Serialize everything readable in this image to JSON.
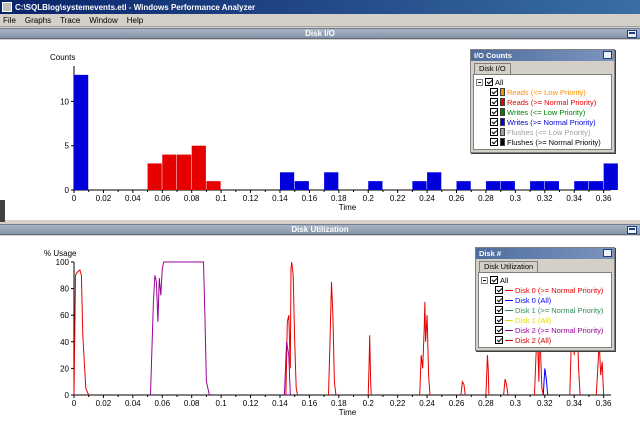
{
  "window": {
    "title": "C:\\SQLBlog\\systemevents.etl - Windows Performance Analyzer"
  },
  "menu": [
    "File",
    "Graphs",
    "Trace",
    "Window",
    "Help"
  ],
  "colors": {
    "reads_low": "#ff8c00",
    "reads_normal": "#e60000",
    "writes_low": "#008000",
    "writes_normal": "#0000dd",
    "flushes_low": "#a0a0a0",
    "flushes_normal": "#000000",
    "disk0_normal": "#e60000",
    "disk0_all": "#0000ff",
    "disk1_normal": "#2e8b57",
    "disk1_all": "#e0e000",
    "disk2_normal": "#990099",
    "disk2_all": "#cc0000"
  },
  "disk_io": {
    "header": "Disk I/O",
    "legend": {
      "title": "I/O Counts",
      "tab": "Disk I/O",
      "all_label": "All",
      "items": [
        {
          "label": "Reads (<= Low Priority)",
          "color": "#ff8c00"
        },
        {
          "label": "Reads (>= Normal Priority)",
          "color": "#e60000"
        },
        {
          "label": "Writes (<= Low Priority)",
          "color": "#008000"
        },
        {
          "label": "Writes (>= Normal Priority)",
          "color": "#0000dd"
        },
        {
          "label": "Flushes (<= Low Priority)",
          "color": "#a0a0a0"
        },
        {
          "label": "Flushes (>= Normal Priority)",
          "color": "#000000"
        }
      ]
    }
  },
  "disk_util": {
    "header": "Disk Utilization",
    "legend": {
      "title": "Disk #",
      "tab": "Disk Utilization",
      "all_label": "All",
      "items": [
        {
          "label": "Disk 0 (>= Normal Priority)",
          "color": "#e60000"
        },
        {
          "label": "Disk 0 (All)",
          "color": "#0000ff"
        },
        {
          "label": "Disk 1 (>= Normal Priority)",
          "color": "#2e8b57"
        },
        {
          "label": "Disk 1 (All)",
          "color": "#e0e000"
        },
        {
          "label": "Disk 2 (>= Normal Priority)",
          "color": "#990099"
        },
        {
          "label": "Disk 2 (All)",
          "color": "#cc0000"
        }
      ]
    }
  },
  "chart_data": [
    {
      "type": "bar",
      "ylabel": "Counts",
      "xlabel": "Time",
      "xlim": [
        0,
        0.365
      ],
      "ylim": [
        0,
        14
      ],
      "yticks": [
        0,
        5,
        10
      ],
      "xticks": [
        "0",
        "0.02",
        "0.04",
        "0.06",
        "0.08",
        "0.1",
        "0.12",
        "0.14",
        "0.16",
        "0.18",
        "0.2",
        "0.22",
        "0.24",
        "0.26",
        "0.28",
        "0.3",
        "0.32",
        "0.34",
        "0.36"
      ],
      "bin_width": 0.01,
      "bars": [
        {
          "x": 0.0,
          "value": 13,
          "color": "#0000dd"
        },
        {
          "x": 0.05,
          "value": 3,
          "color": "#e60000"
        },
        {
          "x": 0.06,
          "value": 4,
          "color": "#e60000"
        },
        {
          "x": 0.07,
          "value": 4,
          "color": "#e60000"
        },
        {
          "x": 0.08,
          "value": 5,
          "color": "#e60000"
        },
        {
          "x": 0.09,
          "value": 1,
          "color": "#e60000"
        },
        {
          "x": 0.14,
          "value": 2,
          "color": "#0000dd"
        },
        {
          "x": 0.15,
          "value": 1,
          "color": "#0000dd"
        },
        {
          "x": 0.17,
          "value": 2,
          "color": "#0000dd"
        },
        {
          "x": 0.2,
          "value": 1,
          "color": "#0000dd"
        },
        {
          "x": 0.23,
          "value": 1,
          "color": "#0000dd"
        },
        {
          "x": 0.24,
          "value": 2,
          "color": "#0000dd"
        },
        {
          "x": 0.26,
          "value": 1,
          "color": "#0000dd"
        },
        {
          "x": 0.28,
          "value": 1,
          "color": "#0000dd"
        },
        {
          "x": 0.29,
          "value": 1,
          "color": "#0000dd"
        },
        {
          "x": 0.31,
          "value": 1,
          "color": "#0000dd"
        },
        {
          "x": 0.32,
          "value": 1,
          "color": "#0000dd"
        },
        {
          "x": 0.34,
          "value": 1,
          "color": "#0000dd"
        },
        {
          "x": 0.35,
          "value": 1,
          "color": "#0000dd"
        },
        {
          "x": 0.36,
          "value": 3,
          "color": "#0000dd"
        }
      ]
    },
    {
      "type": "line",
      "ylabel": "% Usage",
      "xlabel": "Time",
      "xlim": [
        0,
        0.365
      ],
      "ylim": [
        0,
        100
      ],
      "yticks": [
        0,
        20,
        40,
        60,
        80,
        100
      ],
      "xticks": [
        "0",
        "0.02",
        "0.04",
        "0.06",
        "0.08",
        "0.1",
        "0.12",
        "0.14",
        "0.16",
        "0.18",
        "0.2",
        "0.22",
        "0.24",
        "0.26",
        "0.28",
        "0.3",
        "0.32",
        "0.34",
        "0.36"
      ],
      "series": [
        {
          "color": "#e60000",
          "x": [
            0,
            0.001,
            0.002,
            0.004,
            0.005,
            0.006,
            0.008,
            0.01
          ],
          "y": [
            0,
            90,
            92,
            94,
            90,
            45,
            5,
            0
          ]
        },
        {
          "color": "#990099",
          "x": [
            0.052,
            0.054,
            0.055,
            0.056,
            0.057,
            0.058,
            0.059,
            0.06,
            0.061,
            0.062,
            0.088,
            0.089,
            0.09,
            0.092
          ],
          "y": [
            0,
            70,
            90,
            85,
            55,
            88,
            75,
            95,
            100,
            100,
            100,
            60,
            10,
            0
          ]
        },
        {
          "color": "#e60000",
          "x": [
            0.144,
            0.145,
            0.146,
            0.147,
            0.1475,
            0.148,
            0.149,
            0.15,
            0.151,
            0.152
          ],
          "y": [
            0,
            55,
            60,
            20,
            95,
            100,
            90,
            40,
            5,
            0
          ]
        },
        {
          "color": "#990099",
          "x": [
            0.143,
            0.1445,
            0.146,
            0.147
          ],
          "y": [
            0,
            40,
            30,
            0
          ]
        },
        {
          "color": "#e60000",
          "x": [
            0.173,
            0.174,
            0.175,
            0.176,
            0.177,
            0.178
          ],
          "y": [
            0,
            40,
            85,
            60,
            10,
            0
          ]
        },
        {
          "color": "#e60000",
          "x": [
            0.2,
            0.2005,
            0.201,
            0.2015,
            0.202
          ],
          "y": [
            0,
            20,
            45,
            15,
            0
          ]
        },
        {
          "color": "#e60000",
          "x": [
            0.235,
            0.236,
            0.237,
            0.238,
            0.2385,
            0.239,
            0.24,
            0.241,
            0.242
          ],
          "y": [
            0,
            30,
            20,
            50,
            70,
            40,
            60,
            15,
            0
          ]
        },
        {
          "color": "#e60000",
          "x": [
            0.263,
            0.264,
            0.265,
            0.266
          ],
          "y": [
            0,
            10,
            8,
            0
          ]
        },
        {
          "color": "#e60000",
          "x": [
            0.28,
            0.2805,
            0.281,
            0.2815,
            0.282
          ],
          "y": [
            0,
            15,
            30,
            20,
            0
          ]
        },
        {
          "color": "#e60000",
          "x": [
            0.292,
            0.293,
            0.294,
            0.295
          ],
          "y": [
            0,
            12,
            8,
            0
          ]
        },
        {
          "color": "#e60000",
          "x": [
            0.313,
            0.314,
            0.315,
            0.316,
            0.3165,
            0.317,
            0.318,
            0.319
          ],
          "y": [
            0,
            30,
            45,
            10,
            55,
            35,
            5,
            0
          ]
        },
        {
          "color": "#0000ff",
          "x": [
            0.319,
            0.32,
            0.321,
            0.322
          ],
          "y": [
            0,
            20,
            12,
            0
          ]
        },
        {
          "color": "#e60000",
          "x": [
            0.337,
            0.338,
            0.339,
            0.34,
            0.341,
            0.342,
            0.343,
            0.344
          ],
          "y": [
            0,
            40,
            60,
            30,
            90,
            55,
            20,
            0
          ]
        },
        {
          "color": "#e60000",
          "x": [
            0.355,
            0.356,
            0.357,
            0.358,
            0.359,
            0.36
          ],
          "y": [
            0,
            20,
            40,
            15,
            25,
            0
          ]
        }
      ]
    }
  ]
}
